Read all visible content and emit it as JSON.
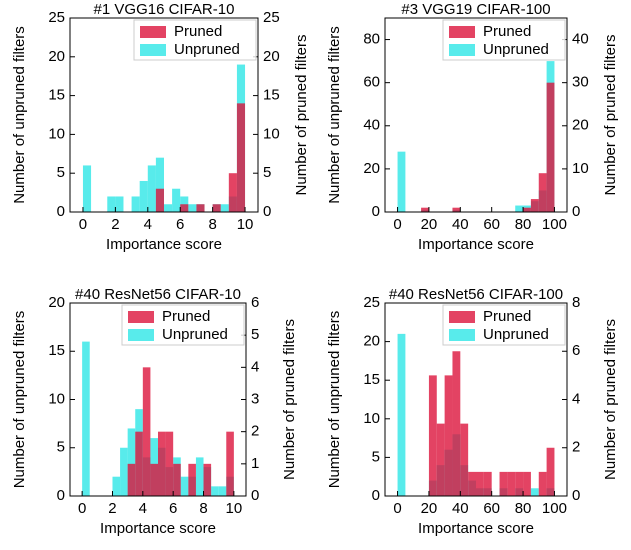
{
  "chart_data": [
    {
      "type": "histogram",
      "title": "#1 VGG16 CIFAR-10",
      "xlabel": "Importance score",
      "ylabel": "Number of unpruned filters",
      "y2label": "Number of pruned filters",
      "legend": "upper right",
      "xlim": [
        -0.8,
        10.8
      ],
      "xticks": [
        0,
        2,
        4,
        6,
        8,
        10
      ],
      "ylim": [
        0,
        25
      ],
      "yticks": [
        0,
        5,
        10,
        15,
        20,
        25
      ],
      "y2lim": [
        0,
        25
      ],
      "y2ticks": [
        0,
        5,
        10,
        15,
        20,
        25
      ],
      "series": [
        {
          "name": "Unpruned",
          "color": "#2ee6e6",
          "bins": [
            0,
            0.5,
            1,
            1.5,
            2,
            2.5,
            3,
            3.5,
            4,
            4.5,
            5,
            5.5,
            6,
            6.5,
            7,
            7.5,
            8,
            8.5,
            9,
            9.5,
            10
          ],
          "values": [
            6,
            0,
            0,
            2,
            2,
            0,
            2,
            4,
            6,
            7,
            1,
            3,
            2,
            1,
            1,
            0,
            1,
            1,
            2,
            19
          ]
        },
        {
          "name": "Pruned",
          "color": "#dc143c",
          "axis": "y2",
          "bins": [
            4.5,
            5,
            5.5,
            6,
            6.5,
            7,
            7.5,
            8,
            8.5,
            9,
            9.5,
            10
          ],
          "values": [
            3,
            0,
            0,
            1,
            0,
            1,
            0,
            1,
            0,
            5,
            14
          ]
        }
      ]
    },
    {
      "type": "histogram",
      "title": "#3 VGG19 CIFAR-100",
      "xlabel": "Importance score",
      "ylabel": "Number of unpruned filters",
      "y2label": "Number of pruned filters",
      "legend": "upper right",
      "xlim": [
        -8,
        108
      ],
      "xticks": [
        0,
        20,
        40,
        60,
        80,
        100
      ],
      "ylim": [
        0,
        90
      ],
      "yticks": [
        0,
        20,
        40,
        60,
        80
      ],
      "y2lim": [
        0,
        45
      ],
      "y2ticks": [
        0,
        10,
        20,
        30,
        40
      ],
      "series": [
        {
          "name": "Unpruned",
          "color": "#2ee6e6",
          "bins": [
            0,
            5,
            10,
            15,
            20,
            25,
            30,
            35,
            40,
            45,
            50,
            55,
            60,
            65,
            70,
            75,
            80,
            85,
            90,
            95,
            100
          ],
          "values": [
            28,
            0,
            0,
            1,
            0,
            0,
            0,
            1,
            0,
            0,
            0,
            0,
            0,
            0,
            0,
            3,
            3,
            5,
            10,
            70
          ]
        },
        {
          "name": "Pruned",
          "color": "#dc143c",
          "axis": "y2",
          "bins": [
            15,
            20,
            25,
            30,
            35,
            40,
            45,
            50,
            55,
            60,
            65,
            70,
            75,
            80,
            85,
            90,
            95,
            100
          ],
          "values": [
            1,
            0,
            0,
            0,
            1,
            0,
            0,
            0,
            0,
            0,
            0,
            0,
            0,
            1,
            3,
            9,
            30
          ]
        }
      ]
    },
    {
      "type": "histogram",
      "title": "#40 ResNet56 CIFAR-10",
      "xlabel": "Importance score",
      "ylabel": "Number of unpruned filters",
      "y2label": "Number of pruned filters",
      "legend": "upper right",
      "xlim": [
        -0.8,
        10.8
      ],
      "xticks": [
        0,
        2,
        4,
        6,
        8,
        10
      ],
      "ylim": [
        0,
        20
      ],
      "yticks": [
        0,
        5,
        10,
        15,
        20
      ],
      "y2lim": [
        0,
        6
      ],
      "y2ticks": [
        0,
        1,
        2,
        3,
        4,
        5,
        6
      ],
      "series": [
        {
          "name": "Unpruned",
          "color": "#2ee6e6",
          "bins": [
            0,
            0.5,
            1,
            1.5,
            2,
            2.5,
            3,
            3.5,
            4,
            4.5,
            5,
            5.5,
            6,
            6.5,
            7,
            7.5,
            8,
            8.5,
            9,
            9.5,
            10
          ],
          "values": [
            16,
            0,
            0,
            0,
            2,
            5,
            7,
            9,
            4,
            6,
            5,
            3,
            4,
            2,
            2,
            4,
            3,
            1,
            1,
            2
          ]
        },
        {
          "name": "Pruned",
          "color": "#dc143c",
          "axis": "y2",
          "bins": [
            3,
            3.5,
            4,
            4.5,
            5,
            5.5,
            6,
            6.5,
            7,
            7.5,
            8,
            8.5,
            9,
            9.5,
            10
          ],
          "values": [
            1,
            2,
            4,
            1,
            2,
            2,
            1,
            0,
            1,
            0,
            1,
            0,
            0,
            2
          ]
        }
      ]
    },
    {
      "type": "histogram",
      "title": "#40 ResNet56 CIFAR-100",
      "xlabel": "Importance score",
      "ylabel": "Number of unpruned filters",
      "y2label": "Number of pruned filters",
      "legend": "upper right",
      "xlim": [
        -8,
        108
      ],
      "xticks": [
        0,
        20,
        40,
        60,
        80,
        100
      ],
      "ylim": [
        0,
        25
      ],
      "yticks": [
        0,
        5,
        10,
        15,
        20,
        25
      ],
      "y2lim": [
        0,
        8
      ],
      "y2ticks": [
        0,
        2,
        4,
        6,
        8
      ],
      "series": [
        {
          "name": "Unpruned",
          "color": "#2ee6e6",
          "bins": [
            0,
            5,
            10,
            15,
            20,
            25,
            30,
            35,
            40,
            45,
            50,
            55,
            60,
            65,
            70,
            75,
            80,
            85,
            90,
            95,
            100
          ],
          "values": [
            21,
            0,
            0,
            0,
            2,
            4,
            6,
            8,
            4,
            2,
            1,
            1,
            0,
            1,
            0,
            1,
            0,
            1,
            0,
            1
          ]
        },
        {
          "name": "Pruned",
          "color": "#dc143c",
          "axis": "y2",
          "bins": [
            20,
            25,
            30,
            35,
            40,
            45,
            50,
            55,
            60,
            65,
            70,
            75,
            80,
            85,
            90,
            95,
            100
          ],
          "values": [
            5,
            3,
            5,
            6,
            3,
            1,
            1,
            1,
            0,
            1,
            1,
            1,
            1,
            0,
            1,
            2
          ]
        }
      ]
    }
  ]
}
